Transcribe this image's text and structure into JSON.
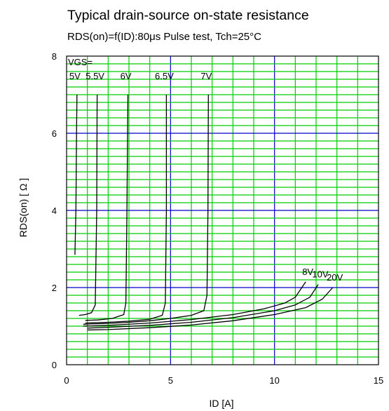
{
  "chart_data": {
    "type": "line",
    "title": "Typical drain-source on-state resistance",
    "subtitle": "RDS(on)=f(ID):80μs Pulse test, Tch=25°C",
    "xlabel": "ID [A]",
    "ylabel": "RDS(on) [ Ω ]",
    "xlim": [
      0,
      15
    ],
    "ylim": [
      0,
      8
    ],
    "x_ticks": [
      "0",
      "5",
      "10",
      "15"
    ],
    "y_ticks": [
      "0",
      "2",
      "4",
      "6",
      "8"
    ],
    "grid": true,
    "legend_prefix": "VGS=",
    "colors": {
      "minor_grid": "#00cc00",
      "major_grid": "#0000cc",
      "frame": "#000000",
      "curve": "#000000"
    },
    "series": [
      {
        "name": "5V",
        "points": [
          [
            0.4,
            2.85
          ],
          [
            0.45,
            4.0
          ],
          [
            0.48,
            6.0
          ],
          [
            0.5,
            7.0
          ]
        ]
      },
      {
        "name": "5.5V",
        "points": [
          [
            0.6,
            1.28
          ],
          [
            0.9,
            1.3
          ],
          [
            1.2,
            1.35
          ],
          [
            1.38,
            1.55
          ],
          [
            1.45,
            4.0
          ],
          [
            1.47,
            7.0
          ]
        ]
      },
      {
        "name": "6V",
        "points": [
          [
            0.9,
            1.15
          ],
          [
            1.5,
            1.16
          ],
          [
            2.2,
            1.2
          ],
          [
            2.75,
            1.3
          ],
          [
            2.85,
            1.6
          ],
          [
            2.9,
            3.8
          ],
          [
            2.95,
            7.0
          ]
        ]
      },
      {
        "name": "6.5V",
        "points": [
          [
            0.9,
            1.08
          ],
          [
            2.0,
            1.1
          ],
          [
            3.0,
            1.13
          ],
          [
            4.0,
            1.18
          ],
          [
            4.6,
            1.28
          ],
          [
            4.75,
            1.6
          ],
          [
            4.8,
            4.0
          ],
          [
            4.8,
            7.0
          ]
        ]
      },
      {
        "name": "7V",
        "points": [
          [
            0.8,
            1.05
          ],
          [
            2.0,
            1.07
          ],
          [
            3.0,
            1.1
          ],
          [
            4.0,
            1.14
          ],
          [
            5.0,
            1.2
          ],
          [
            6.0,
            1.28
          ],
          [
            6.6,
            1.4
          ],
          [
            6.75,
            1.8
          ],
          [
            6.8,
            4.0
          ],
          [
            6.82,
            7.0
          ]
        ]
      },
      {
        "name": "8V",
        "points": [
          [
            0.8,
            1.0
          ],
          [
            2.0,
            1.02
          ],
          [
            4.0,
            1.08
          ],
          [
            6.0,
            1.17
          ],
          [
            8.0,
            1.3
          ],
          [
            9.5,
            1.45
          ],
          [
            10.5,
            1.6
          ],
          [
            11.0,
            1.75
          ],
          [
            11.5,
            2.15
          ]
        ]
      },
      {
        "name": "10V",
        "points": [
          [
            1.0,
            0.95
          ],
          [
            2.0,
            0.97
          ],
          [
            4.0,
            1.02
          ],
          [
            6.0,
            1.1
          ],
          [
            8.0,
            1.22
          ],
          [
            10.0,
            1.4
          ],
          [
            11.0,
            1.55
          ],
          [
            11.7,
            1.75
          ],
          [
            12.1,
            2.08
          ]
        ]
      },
      {
        "name": "20V",
        "points": [
          [
            1.0,
            0.9
          ],
          [
            2.0,
            0.91
          ],
          [
            4.0,
            0.96
          ],
          [
            6.0,
            1.03
          ],
          [
            8.0,
            1.14
          ],
          [
            10.0,
            1.3
          ],
          [
            11.5,
            1.48
          ],
          [
            12.3,
            1.7
          ],
          [
            12.8,
            2.0
          ]
        ]
      }
    ]
  }
}
